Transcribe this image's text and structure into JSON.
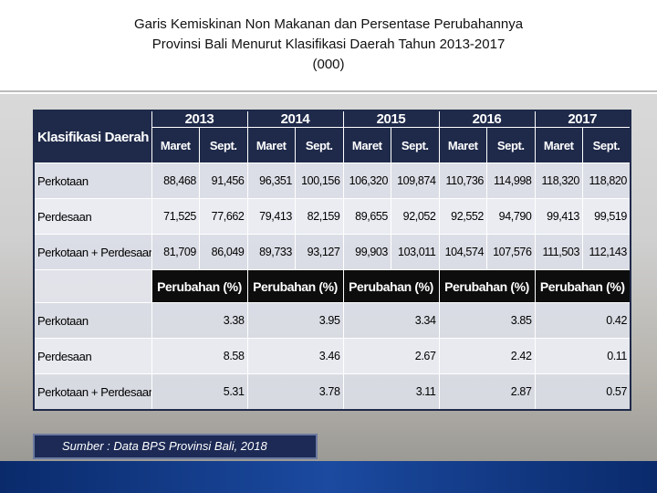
{
  "title": [
    "Garis Kemiskinan Non Makanan dan Persentase Perubahannya",
    "Provinsi Bali Menurut Klasifikasi Daerah Tahun 2013-2017",
    "(000)"
  ],
  "table": {
    "header_label": "Klasifikasi Daerah",
    "years": [
      "2013",
      "2014",
      "2015",
      "2016",
      "2017"
    ],
    "months": [
      "Maret",
      "Sept.",
      "Maret",
      "Sept.",
      "Maret",
      "Sept.",
      "Maret",
      "Sept.",
      "Maret",
      "Sept."
    ],
    "rows": [
      [
        "Perkotaan",
        "88,468",
        "91,456",
        "96,351",
        "100,156",
        "106,320",
        "109,874",
        "110,736",
        "114,998",
        "118,320",
        "118,820"
      ],
      [
        "Perdesaan",
        "71,525",
        "77,662",
        "79,413",
        "82,159",
        "89,655",
        "92,052",
        "92,552",
        "94,790",
        "99,413",
        "99,519"
      ],
      [
        "Perkotaan + Perdesaan",
        "81,709",
        "86,049",
        "89,733",
        "93,127",
        "99,903",
        "103,011",
        "104,574",
        "107,576",
        "111,503",
        "112,143"
      ]
    ],
    "change_headers": [
      "Perubahan (%)",
      "Perubahan (%)",
      "Perubahan (%)",
      "Perubahan (%)",
      "Perubahan (%)"
    ],
    "change_rows": [
      [
        "Perkotaan",
        "3.38",
        "3.95",
        "3.34",
        "3.85",
        "0.42"
      ],
      [
        "Perdesaan",
        "8.58",
        "3.46",
        "2.67",
        "2.42",
        "0.11"
      ],
      [
        "Perkotaan + Perdesaan",
        "5.31",
        "3.78",
        "3.11",
        "2.87",
        "0.57"
      ]
    ]
  },
  "source": "Sumber : Data BPS Provinsi Bali, 2018"
}
